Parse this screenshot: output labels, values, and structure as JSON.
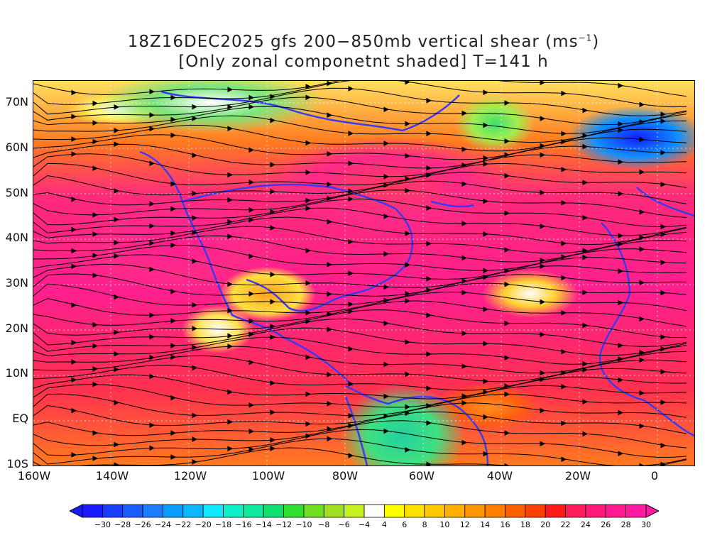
{
  "title": {
    "line1_prefix": "18Z16DEC2025 gfs 200−850mb vertical shear (ms",
    "line1_sup": "−1",
    "line1_suffix": ")",
    "line2": "[Only zonal componetnt shaded] T=141 h"
  },
  "axes": {
    "lat_labels": [
      "70N",
      "60N",
      "50N",
      "40N",
      "30N",
      "20N",
      "10N",
      "EQ",
      "10S"
    ],
    "lon_labels": [
      "160W",
      "140W",
      "120W",
      "100W",
      "80W",
      "60W",
      "40W",
      "20W",
      "0"
    ]
  },
  "colorbar": {
    "labels": [
      "−30",
      "−28",
      "−26",
      "−24",
      "−22",
      "−20",
      "−18",
      "−16",
      "−14",
      "−12",
      "−10",
      "−8",
      "−6",
      "−4",
      "4",
      "6",
      "8",
      "10",
      "12",
      "14",
      "16",
      "18",
      "20",
      "22",
      "24",
      "26",
      "28",
      "30"
    ],
    "colors": [
      "#1a1aff",
      "#1a3cff",
      "#1a5cff",
      "#1a7cff",
      "#0a9cff",
      "#0ab8ff",
      "#10e8ff",
      "#10f0c8",
      "#10e8a0",
      "#10e070",
      "#30e030",
      "#70e020",
      "#a0e020",
      "#c8f020",
      "#ffffff",
      "#ffff00",
      "#ffe000",
      "#ffc800",
      "#ffb000",
      "#ff9800",
      "#ff8000",
      "#ff6000",
      "#ff4000",
      "#ff1a1a",
      "#ff1a5a",
      "#ff1a7a",
      "#ff1a8f",
      "#ff1aa0"
    ]
  }
}
